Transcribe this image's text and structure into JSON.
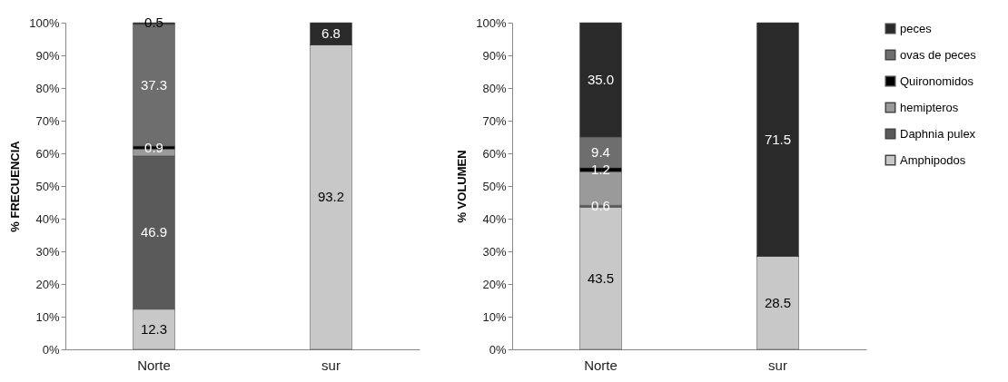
{
  "chart_data": [
    {
      "type": "bar",
      "stacked": true,
      "categories": [
        "Norte",
        "sur"
      ],
      "ylabel": "% FRECUENCIA",
      "ylim": [
        0,
        100
      ],
      "yticks": [
        {
          "value": 0,
          "label": "0%"
        },
        {
          "value": 10,
          "label": "10%"
        },
        {
          "value": 20,
          "label": "20%"
        },
        {
          "value": 30,
          "label": "30%"
        },
        {
          "value": 40,
          "label": "40%"
        },
        {
          "value": 50,
          "label": "50%"
        },
        {
          "value": 60,
          "label": "60%"
        },
        {
          "value": 70,
          "label": "70%"
        },
        {
          "value": 80,
          "label": "80%"
        },
        {
          "value": 90,
          "label": "90%"
        },
        {
          "value": 100,
          "label": "100%"
        }
      ],
      "series": [
        {
          "color": "#c8c8c8",
          "values": [
            12.3,
            93.2
          ],
          "value_labels": [
            "12.3",
            "93.2"
          ]
        },
        {
          "color": "#5a5a5a",
          "values": [
            46.9,
            0
          ],
          "value_labels": [
            "46.9",
            null
          ]
        },
        {
          "color": "#9a9a9a",
          "values": [
            2.1,
            0
          ],
          "value_labels": [
            null,
            null
          ]
        },
        {
          "color": "#000000",
          "values": [
            0.9,
            0
          ],
          "value_labels": [
            "0.9",
            null
          ]
        },
        {
          "color": "#6e6e6e",
          "values": [
            37.3,
            0
          ],
          "value_labels": [
            "37.3",
            null
          ]
        },
        {
          "color": "#2a2a2a",
          "values": [
            0.5,
            6.8
          ],
          "value_labels": [
            "0.5",
            "6.8"
          ]
        }
      ]
    },
    {
      "type": "bar",
      "stacked": true,
      "categories": [
        "Norte",
        "sur"
      ],
      "ylabel": "% VOLUMEN",
      "ylim": [
        0,
        100
      ],
      "yticks": [
        {
          "value": 0,
          "label": "0%"
        },
        {
          "value": 10,
          "label": "10%"
        },
        {
          "value": 20,
          "label": "20%"
        },
        {
          "value": 30,
          "label": "30%"
        },
        {
          "value": 40,
          "label": "40%"
        },
        {
          "value": 50,
          "label": "50%"
        },
        {
          "value": 60,
          "label": "60%"
        },
        {
          "value": 70,
          "label": "70%"
        },
        {
          "value": 80,
          "label": "80%"
        },
        {
          "value": 90,
          "label": "90%"
        },
        {
          "value": 100,
          "label": "100%"
        }
      ],
      "legend": "right",
      "series": [
        {
          "name": "Amphipodos",
          "color": "#c8c8c8",
          "values": [
            43.5,
            28.5
          ],
          "value_labels": [
            "43.5",
            "28.5"
          ]
        },
        {
          "name": "Daphnia pulex",
          "color": "#5a5a5a",
          "values": [
            0.6,
            0
          ],
          "value_labels": [
            "0.6",
            null
          ]
        },
        {
          "name": "hemipteros",
          "color": "#9a9a9a",
          "values": [
            10.3,
            0
          ],
          "value_labels": [
            null,
            null
          ]
        },
        {
          "name": "Quironomidos",
          "color": "#000000",
          "values": [
            1.2,
            0
          ],
          "value_labels": [
            "1.2",
            null
          ]
        },
        {
          "name": "ovas de peces",
          "color": "#6e6e6e",
          "values": [
            9.4,
            0
          ],
          "value_labels": [
            "9.4",
            null
          ]
        },
        {
          "name": "peces",
          "color": "#2a2a2a",
          "values": [
            35.0,
            71.5
          ],
          "value_labels": [
            "35.0",
            "71.5"
          ]
        }
      ]
    }
  ]
}
